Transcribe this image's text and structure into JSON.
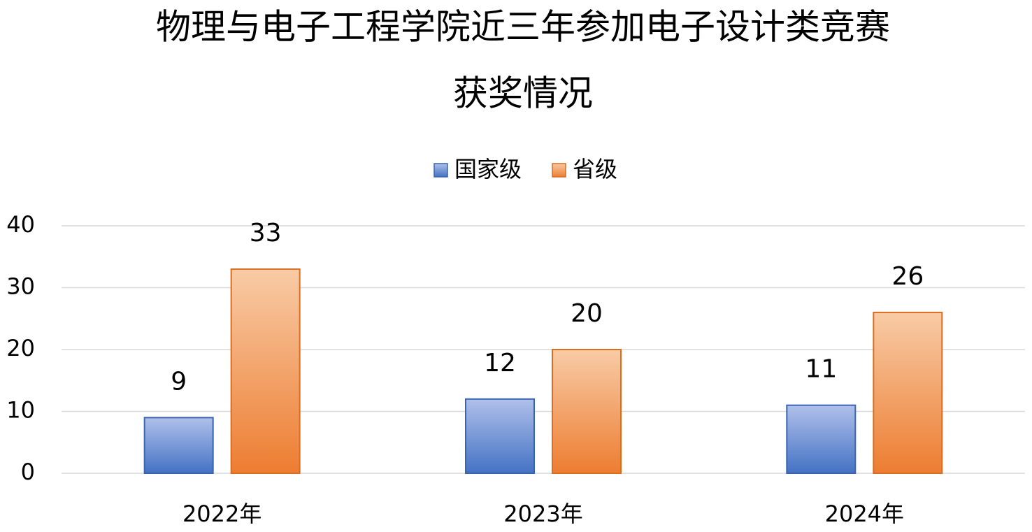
{
  "chart_data": {
    "type": "bar",
    "title": [
      "物理与电子工程学院近三年参加电子设计类竞赛",
      "获奖情况"
    ],
    "categories": [
      "2022年",
      "2023年",
      "2024年"
    ],
    "series": [
      {
        "name": "国家级",
        "color": "#4472c4",
        "values": [
          9,
          12,
          11
        ]
      },
      {
        "name": "省级",
        "color": "#ed7d31",
        "values": [
          33,
          20,
          26
        ]
      }
    ],
    "ylim": [
      0,
      40
    ],
    "yticks": [
      0,
      10,
      20,
      30,
      40
    ],
    "grid": true,
    "legend": "top"
  }
}
